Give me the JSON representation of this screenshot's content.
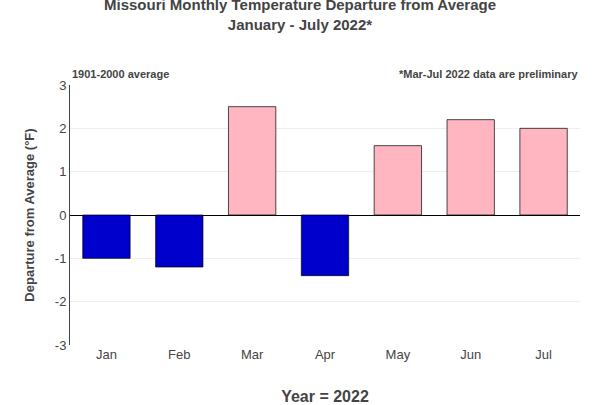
{
  "chart_data": {
    "type": "bar",
    "title": "Missouri Monthly Temperature Departure from Average",
    "subtitle": "January - July 2022*",
    "xlabel": "Year = 2022",
    "ylabel": "Departure from Average (°F)",
    "annotations": [
      "1901-2000 average",
      "*Mar-Jul 2022 data are preliminary"
    ],
    "categories": [
      "Jan",
      "Feb",
      "Mar",
      "Apr",
      "May",
      "Jun",
      "Jul"
    ],
    "values": [
      -1.0,
      -1.2,
      2.5,
      -1.4,
      1.6,
      2.2,
      2.0
    ],
    "colors": [
      "#0000CC",
      "#0000CC",
      "#FFB6C1",
      "#0000CC",
      "#FFB6C1",
      "#FFB6C1",
      "#FFB6C1"
    ],
    "ylim": [
      -3.0,
      3.0
    ],
    "yticks": [
      -3,
      -2,
      -1,
      0,
      1,
      2,
      3
    ],
    "grid": true
  }
}
